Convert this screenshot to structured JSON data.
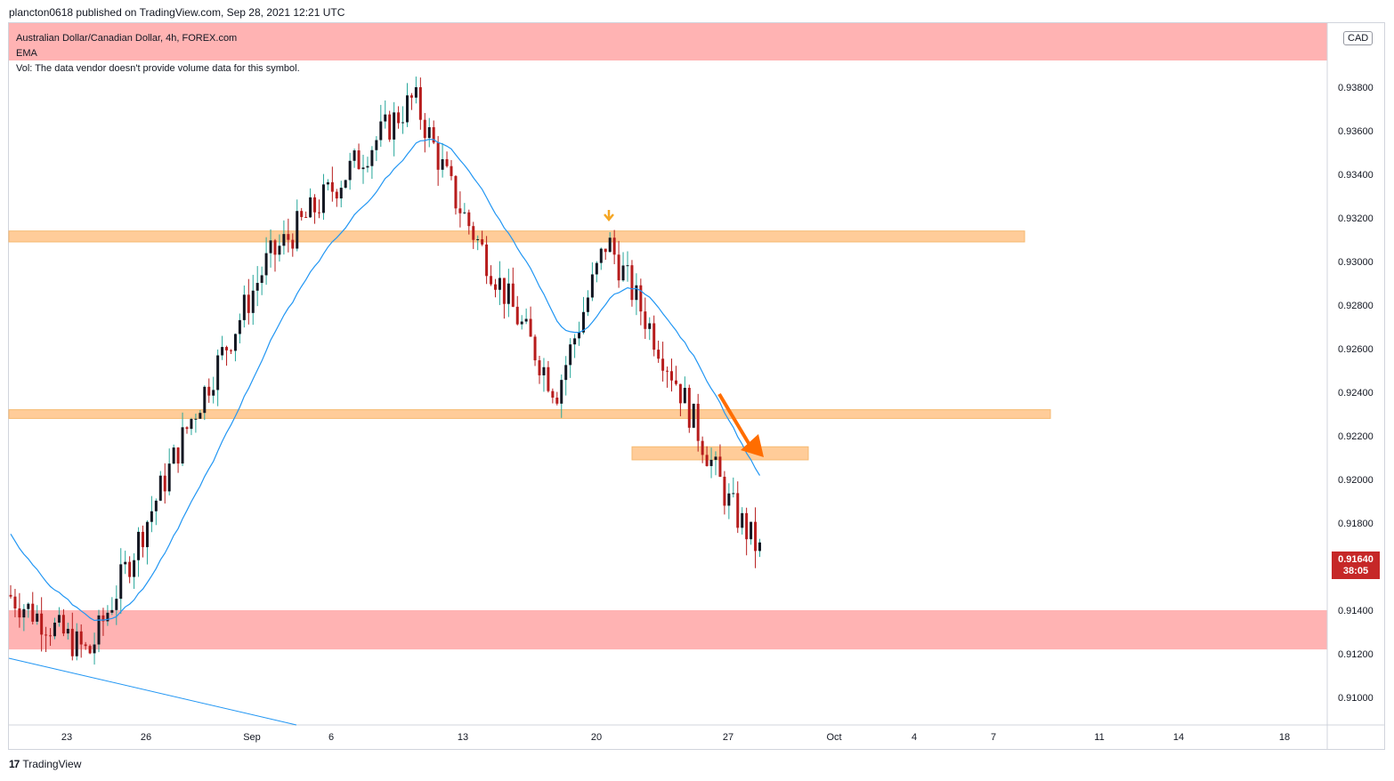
{
  "header": {
    "publish_line": "plancton0618 published on TradingView.com, Sep 28, 2021 12:21 UTC"
  },
  "legend": {
    "symbol_line": "Australian Dollar/Canadian Dollar, 4h, FOREX.com",
    "indicator": "EMA",
    "volume_note": "Vol: The data vendor doesn't provide volume data for this symbol."
  },
  "price_axis": {
    "currency": "CAD",
    "labels": [
      "0.93800",
      "0.93600",
      "0.93400",
      "0.93200",
      "0.93000",
      "0.92800",
      "0.92600",
      "0.92400",
      "0.92200",
      "0.92000",
      "0.91800",
      "0.91400",
      "0.91200",
      "0.91000"
    ]
  },
  "time_axis": {
    "labels": [
      "23",
      "26",
      "Sep",
      "6",
      "13",
      "20",
      "27",
      "Oct",
      "4",
      "7",
      "11",
      "14",
      "18"
    ]
  },
  "last_price": {
    "value": "0.91640",
    "countdown": "38:05",
    "color": "#c62828"
  },
  "colors": {
    "up_candle": "#131722",
    "down_candle": "#b71c1c",
    "wick_up": "#26a69a",
    "wick_down": "#b71c1c",
    "ema": "#2196f3",
    "zone_orange": "#ffcc99",
    "zone_red": "#ffb3b3",
    "arrow": "#ff6d00"
  },
  "chart_data": {
    "type": "candlestick",
    "symbol": "Australian Dollar/Canadian Dollar",
    "interval": "4h",
    "ylim": [
      0.9093,
      0.9405
    ],
    "ema_line": true,
    "zones": [
      {
        "kind": "supply-zone",
        "low": 0.9309,
        "high": 0.9314
      },
      {
        "kind": "support-zone",
        "low": 0.9228,
        "high": 0.9232
      },
      {
        "kind": "resistance-zone",
        "low": 0.9209,
        "high": 0.9215
      },
      {
        "kind": "demand-zone",
        "low": 0.9122,
        "high": 0.914
      },
      {
        "kind": "top-highlight",
        "low": 0.9391,
        "high": 0.9405
      }
    ],
    "key_points": [
      {
        "date": "Aug 20",
        "close": 0.9147
      },
      {
        "date": "Aug 24",
        "close": 0.912
      },
      {
        "date": "Aug 27",
        "close": 0.9228
      },
      {
        "date": "Sep 2",
        "close": 0.93
      },
      {
        "date": "Sep 9",
        "close": 0.9375
      },
      {
        "date": "Sep 13",
        "close": 0.933
      },
      {
        "date": "Sep 17",
        "close": 0.924
      },
      {
        "date": "Sep 20",
        "close": 0.931
      },
      {
        "date": "Sep 24",
        "close": 0.9245
      },
      {
        "date": "Sep 27",
        "close": 0.919
      },
      {
        "date": "Sep 28",
        "close": 0.9164
      }
    ]
  },
  "footer": {
    "brand": "TradingView",
    "mark": "17"
  }
}
